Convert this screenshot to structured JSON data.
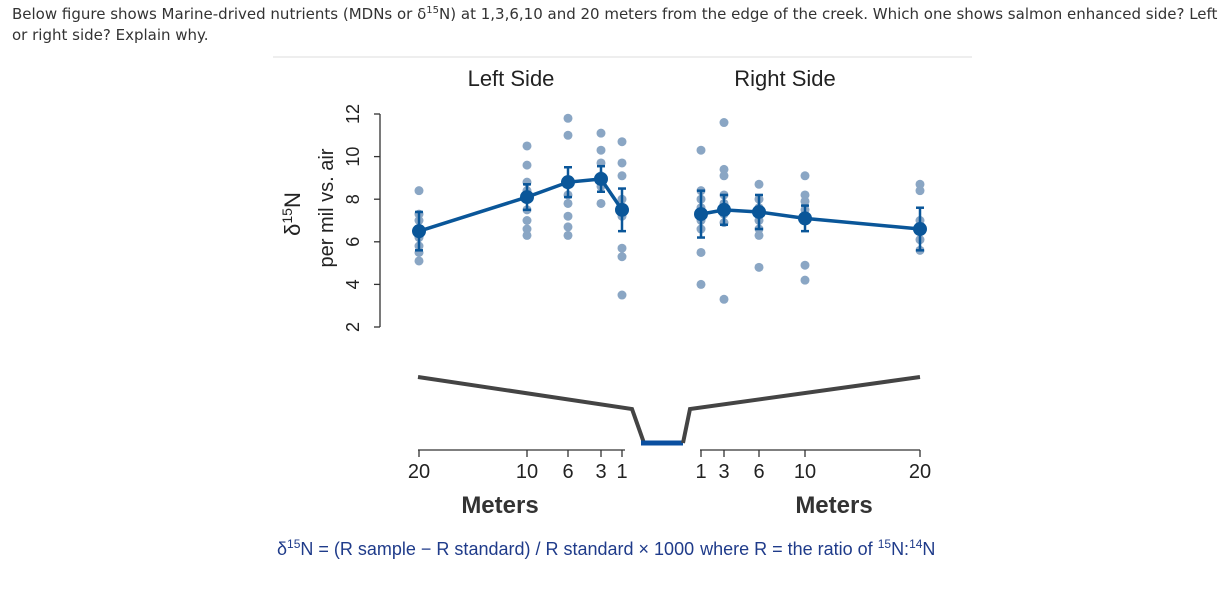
{
  "question": {
    "text_before": "Below figure shows Marine-drived nutrients (MDNs or δ",
    "sup": "15",
    "text_after": "N) at 1,3,6,10 and 20 meters from the edge of the creek. Which one shows salmon enhanced side? Left or right side? Explain why."
  },
  "formula": {
    "delta": "δ",
    "sup15": "15",
    "main": "N = (R sample − R standard) / R standard × 1000",
    "where": "where R = the ratio of",
    "sup15b": "15",
    "n1": "N:",
    "sup14": "14",
    "n2": "N"
  },
  "colors": {
    "series": "#0a5699",
    "points": "#8aa6c4",
    "creek": "#0a4fa0",
    "bank": "#444444"
  },
  "chart_data": [
    {
      "type": "line",
      "title": "Left Side",
      "ylabel_symbol": "δ",
      "ylabel_sup": "15",
      "ylabel_sym_tail": "N",
      "ylabel": "per mil vs. air",
      "yticks": [
        2,
        4,
        6,
        8,
        10,
        12
      ],
      "ylim": [
        2,
        12
      ],
      "xlabel": "Meters",
      "xticks": [
        20,
        10,
        6,
        3,
        1
      ],
      "x_reversed": true,
      "series": [
        {
          "x": [
            20,
            10,
            6,
            3,
            1
          ],
          "values": [
            6.5,
            8.1,
            8.8,
            8.95,
            7.5
          ],
          "err": [
            0.9,
            0.6,
            0.7,
            0.6,
            1.0
          ]
        }
      ],
      "points": [
        {
          "x": 20,
          "y": [
            8.4,
            7.3,
            7.0,
            6.6,
            6.2,
            5.8,
            5.5,
            5.1
          ]
        },
        {
          "x": 10,
          "y": [
            10.5,
            9.6,
            8.8,
            8.4,
            8.0,
            7.5,
            7.0,
            6.6,
            6.3
          ]
        },
        {
          "x": 6,
          "y": [
            11.8,
            11.0,
            8.7,
            8.2,
            7.8,
            7.2,
            6.7,
            6.3
          ]
        },
        {
          "x": 3,
          "y": [
            11.1,
            10.3,
            9.7,
            9.1,
            8.6,
            7.8
          ]
        },
        {
          "x": 1,
          "y": [
            10.7,
            9.7,
            9.1,
            8.0,
            7.2,
            5.7,
            5.3,
            3.5
          ]
        }
      ]
    },
    {
      "type": "line",
      "title": "Right Side",
      "xlabel": "Meters",
      "xticks": [
        1,
        3,
        6,
        10,
        20
      ],
      "ylim": [
        2,
        12
      ],
      "series": [
        {
          "x": [
            1,
            3,
            6,
            10,
            20
          ],
          "values": [
            7.3,
            7.5,
            7.4,
            7.1,
            6.6
          ],
          "err": [
            1.1,
            0.7,
            0.8,
            0.6,
            1.0
          ]
        }
      ],
      "points": [
        {
          "x": 1,
          "y": [
            10.3,
            8.4,
            8.0,
            7.6,
            7.0,
            6.6,
            5.5,
            4.0
          ]
        },
        {
          "x": 3,
          "y": [
            11.6,
            9.4,
            9.1,
            8.2,
            7.8,
            7.3,
            6.9,
            3.3
          ]
        },
        {
          "x": 6,
          "y": [
            8.7,
            8.0,
            7.6,
            7.0,
            6.6,
            6.3,
            4.8
          ]
        },
        {
          "x": 10,
          "y": [
            9.1,
            8.2,
            7.9,
            7.5,
            7.0,
            4.9,
            4.2
          ]
        },
        {
          "x": 20,
          "y": [
            8.7,
            8.4,
            7.0,
            6.6,
            6.1,
            5.6
          ]
        }
      ]
    }
  ]
}
